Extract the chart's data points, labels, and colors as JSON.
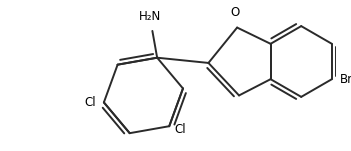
{
  "background_color": "#ffffff",
  "line_color": "#2a2a2a",
  "line_width": 1.4,
  "atoms": {
    "NH2_label": "H₂N",
    "O_label": "O",
    "Br_label": "Br",
    "Cl_left_label": "Cl",
    "Cl_right_label": "Cl"
  }
}
